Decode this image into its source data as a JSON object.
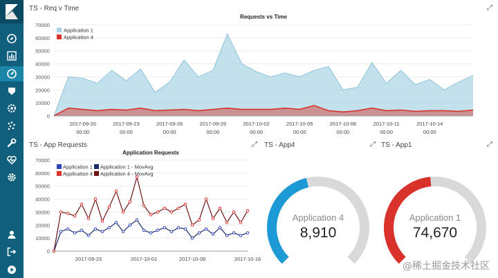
{
  "app": {
    "accent": "#0f5f7d",
    "active_accent": "#1c86a8",
    "sidebar_icons": [
      "compass-icon",
      "bar-chart-icon",
      "dashboard-icon",
      "shield-icon",
      "gear-circle-icon",
      "scatter-icon",
      "wrench-icon",
      "heartbeat-icon",
      "settings-icon",
      "user-icon",
      "logout-icon",
      "play-icon"
    ],
    "watermark": "@稀土掘金技术社区"
  },
  "panels": {
    "req_v_time": {
      "title": "TS - Req v Time",
      "expand": "⤢"
    },
    "app_requests": {
      "title": "TS - App Requests",
      "expand": "⤢"
    },
    "app4": {
      "title": "TS - App4",
      "expand": "⤢"
    },
    "app1": {
      "title": "TS - App1",
      "expand": "⤢"
    }
  },
  "chart_data": [
    {
      "type": "area",
      "title": "Requests vs Time",
      "xlabel": "",
      "ylabel": "",
      "ylim": [
        0,
        70000
      ],
      "yticks": [
        0,
        10000,
        20000,
        30000,
        40000,
        50000,
        60000,
        70000
      ],
      "xticks": [
        {
          "label": "2017-09-20",
          "sub": "00:00",
          "day": 2
        },
        {
          "label": "2017-09-23",
          "sub": "00:00",
          "day": 5
        },
        {
          "label": "2017-09-26",
          "sub": "00:00",
          "day": 8
        },
        {
          "label": "2017-09-29",
          "sub": "00:00",
          "day": 11
        },
        {
          "label": "2017-10-02",
          "sub": "00:00",
          "day": 14
        },
        {
          "label": "2017-10-05",
          "sub": "00:00",
          "day": 17
        },
        {
          "label": "2017-10-08",
          "sub": "00:00",
          "day": 20
        },
        {
          "label": "2017-10-11",
          "sub": "00:00",
          "day": 23
        },
        {
          "label": "2017-10-14",
          "sub": "00:00",
          "day": 26
        }
      ],
      "x": [
        0,
        1,
        2,
        3,
        4,
        5,
        6,
        7,
        8,
        9,
        10,
        11,
        12,
        13,
        14,
        15,
        16,
        17,
        18,
        19,
        20,
        21,
        22,
        23,
        24,
        25,
        26,
        27,
        28,
        29
      ],
      "series": [
        {
          "name": "Application 1",
          "color": "#a8d4e6",
          "values": [
            0,
            30000,
            29000,
            25000,
            35000,
            27000,
            36000,
            18000,
            26000,
            43000,
            30000,
            35000,
            63000,
            40000,
            34000,
            30000,
            33000,
            30000,
            35000,
            38000,
            20000,
            22000,
            41000,
            25000,
            35000,
            24000,
            28000,
            20000,
            26000,
            31000
          ]
        },
        {
          "name": "Application 4",
          "color": "#d8322a",
          "values": [
            0,
            6000,
            5000,
            4000,
            5000,
            4500,
            6000,
            4000,
            4500,
            5000,
            4000,
            5000,
            6000,
            5000,
            5000,
            5000,
            6000,
            5000,
            8000,
            4000,
            3000,
            4000,
            6000,
            4000,
            4500,
            3500,
            4000,
            4000,
            3500,
            4500
          ]
        }
      ]
    },
    {
      "type": "line",
      "title": "Application Requests",
      "ylim": [
        0,
        70000
      ],
      "yticks": [
        0,
        10000,
        20000,
        30000,
        40000,
        50000,
        60000,
        70000
      ],
      "xticks": [
        {
          "label": "2017-09-23",
          "day": 5
        },
        {
          "label": "2017-10-01",
          "day": 13
        },
        {
          "label": "2017-10-08",
          "day": 20
        },
        {
          "label": "2017-10-16",
          "day": 28
        }
      ],
      "x": [
        0,
        1,
        2,
        3,
        4,
        5,
        6,
        7,
        8,
        9,
        10,
        11,
        12,
        13,
        14,
        15,
        16,
        17,
        18,
        19,
        20,
        21,
        22,
        23,
        24,
        25,
        26,
        27,
        28
      ],
      "series": [
        {
          "name": "Application 1",
          "color": "#2f45b8",
          "values": [
            0,
            15000,
            17000,
            14000,
            16000,
            12000,
            17000,
            15000,
            18000,
            22000,
            15000,
            20000,
            24000,
            16000,
            14000,
            16000,
            18000,
            15000,
            18000,
            17000,
            10000,
            14000,
            17000,
            13000,
            18000,
            12000,
            14000,
            12000,
            14000
          ]
        },
        {
          "name": "Application 1 - MovAvg",
          "color": "#1b2a6b",
          "values": [
            0,
            15000,
            17000,
            14000,
            16000,
            12000,
            17000,
            15000,
            18000,
            22000,
            15000,
            20000,
            24000,
            16000,
            14000,
            16000,
            18000,
            15000,
            18000,
            17000,
            10000,
            14000,
            17000,
            13000,
            18000,
            12000,
            14000,
            12000,
            14000
          ]
        },
        {
          "name": "Application 4",
          "color": "#d8322a",
          "values": [
            0,
            30000,
            29000,
            27000,
            36000,
            25000,
            40000,
            23000,
            34000,
            46000,
            30000,
            38000,
            57000,
            35000,
            28000,
            30000,
            33000,
            30000,
            33000,
            36000,
            20000,
            24000,
            40000,
            25000,
            33000,
            22000,
            30000,
            22000,
            31000
          ]
        },
        {
          "name": "Application 4 - MovAvg",
          "color": "#6b1212",
          "values": [
            0,
            30000,
            29000,
            27000,
            36000,
            25000,
            40000,
            23000,
            34000,
            46000,
            30000,
            38000,
            57000,
            35000,
            28000,
            30000,
            33000,
            30000,
            33000,
            36000,
            20000,
            24000,
            40000,
            25000,
            33000,
            22000,
            30000,
            22000,
            31000
          ]
        }
      ]
    }
  ],
  "gauges": {
    "app4": {
      "label": "Application 4",
      "value": "8,910",
      "fraction": 0.45,
      "color": "#1c9ad6"
    },
    "app1": {
      "label": "Application 1",
      "value": "74,670",
      "fraction": 0.48,
      "color": "#d8322a"
    }
  }
}
